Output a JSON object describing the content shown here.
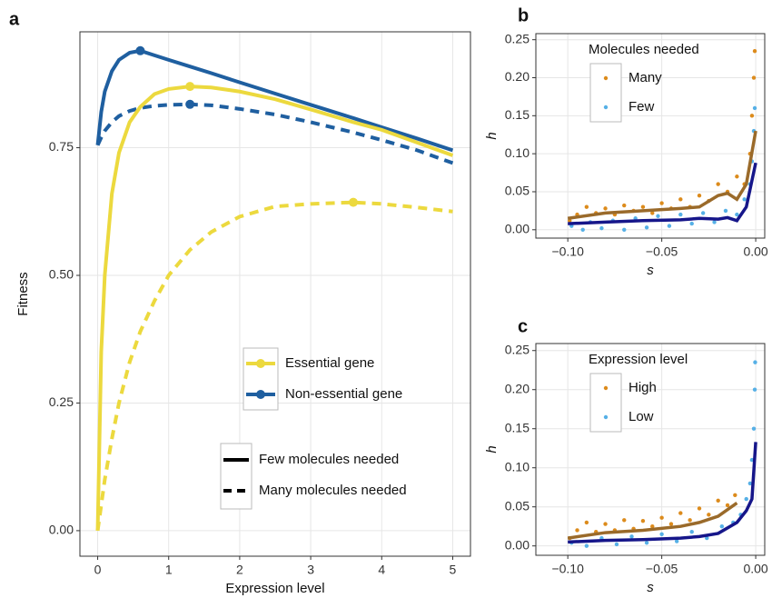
{
  "chart_data": [
    {
      "type": "line",
      "panel_label": "a",
      "x_label": "Expression level",
      "y_label": "Fitness",
      "x": [
        0,
        0.05,
        0.1,
        0.2,
        0.3,
        0.45,
        0.6,
        0.8,
        1,
        1.3,
        1.6,
        2,
        2.5,
        3,
        3.6,
        4,
        4.5,
        5
      ],
      "xlim": [
        -0.25,
        5.25
      ],
      "ylim": [
        -0.05,
        0.977
      ],
      "xticks": [
        0,
        1,
        2,
        3,
        4,
        5
      ],
      "yticks": [
        {
          "value": 0,
          "label": "0.00"
        },
        {
          "value": 0.25,
          "label": "0.25"
        },
        {
          "value": 0.5,
          "label": "0.50"
        },
        {
          "value": 0.75,
          "label": "0.75"
        }
      ],
      "grid": true,
      "series": [
        {
          "color": "#1f5fa0",
          "dashed": false,
          "peak_x": 0.6,
          "peak_y": 0.94,
          "values": [
            0.755,
            0.82,
            0.86,
            0.9,
            0.922,
            0.936,
            0.94,
            0.931,
            0.922,
            0.909,
            0.896,
            0.878,
            0.856,
            0.834,
            0.808,
            0.79,
            0.768,
            0.745
          ]
        },
        {
          "color": "#1f5fa0",
          "dashed": true,
          "peak_x": 1.3,
          "peak_y": 0.835,
          "values": [
            0.755,
            0.77,
            0.783,
            0.8,
            0.812,
            0.822,
            0.828,
            0.832,
            0.834,
            0.835,
            0.833,
            0.826,
            0.815,
            0.8,
            0.78,
            0.765,
            0.745,
            0.72
          ]
        },
        {
          "color": "#ecd93e",
          "dashed": false,
          "peak_x": 1.3,
          "peak_y": 0.87,
          "values": [
            0,
            0.35,
            0.5,
            0.66,
            0.74,
            0.8,
            0.83,
            0.855,
            0.865,
            0.87,
            0.868,
            0.86,
            0.845,
            0.825,
            0.8,
            0.785,
            0.76,
            0.735
          ]
        },
        {
          "color": "#ecd93e",
          "dashed": true,
          "peak_x": 3.6,
          "peak_y": 0.643,
          "values": [
            0,
            0.05,
            0.1,
            0.18,
            0.25,
            0.33,
            0.39,
            0.45,
            0.5,
            0.55,
            0.585,
            0.615,
            0.635,
            0.64,
            0.643,
            0.64,
            0.633,
            0.625
          ]
        }
      ],
      "color_legend": [
        {
          "label": "Essential gene",
          "color": "#ecd93e"
        },
        {
          "label": "Non-essential gene",
          "color": "#1f5fa0"
        }
      ],
      "linetype_legend": [
        {
          "label": "Few molecules needed",
          "dashed": false
        },
        {
          "label": "Many molecules needed",
          "dashed": true
        }
      ]
    },
    {
      "type": "scatter",
      "panel_label": "b",
      "x_label": "s",
      "y_label": "h",
      "legend_title": "Molecules needed",
      "xlim": [
        -0.117,
        0.0048
      ],
      "ylim": [
        -0.011,
        0.258
      ],
      "grid": true,
      "xticks": [
        {
          "value": -0.1,
          "label": "−0.10"
        },
        {
          "value": -0.05,
          "label": "−0.05"
        },
        {
          "value": 0,
          "label": "0.00"
        }
      ],
      "yticks": [
        {
          "value": 0,
          "label": "0.00"
        },
        {
          "value": 0.05,
          "label": "0.05"
        },
        {
          "value": 0.1,
          "label": "0.10"
        },
        {
          "value": 0.15,
          "label": "0.15"
        },
        {
          "value": 0.2,
          "label": "0.20"
        },
        {
          "value": 0.25,
          "label": "0.25"
        }
      ],
      "series": [
        {
          "name": "Many",
          "color": "#dc8b1c",
          "x": [
            -0.099,
            -0.095,
            -0.09,
            -0.085,
            -0.08,
            -0.075,
            -0.07,
            -0.065,
            -0.06,
            -0.055,
            -0.05,
            -0.045,
            -0.04,
            -0.035,
            -0.03,
            -0.025,
            -0.02,
            -0.015,
            -0.01,
            -0.006,
            -0.003,
            -0.002,
            -0.001,
            -0.0005
          ],
          "values": [
            0.012,
            0.02,
            0.03,
            0.022,
            0.028,
            0.02,
            0.032,
            0.025,
            0.03,
            0.022,
            0.035,
            0.028,
            0.04,
            0.03,
            0.045,
            0.038,
            0.06,
            0.05,
            0.07,
            0.06,
            0.1,
            0.15,
            0.2,
            0.235
          ]
        },
        {
          "name": "Few",
          "color": "#56b0e6",
          "x": [
            -0.098,
            -0.092,
            -0.088,
            -0.082,
            -0.076,
            -0.07,
            -0.064,
            -0.058,
            -0.052,
            -0.046,
            -0.04,
            -0.034,
            -0.028,
            -0.022,
            -0.016,
            -0.01,
            -0.006,
            -0.003,
            -0.002,
            -0.001,
            -0.0005
          ],
          "values": [
            0.005,
            0,
            0.01,
            0.002,
            0.012,
            0,
            0.015,
            0.003,
            0.018,
            0.005,
            0.02,
            0.008,
            0.022,
            0.01,
            0.025,
            0.02,
            0.04,
            0.06,
            0.09,
            0.13,
            0.16
          ]
        }
      ],
      "smooth": [
        {
          "color": "#9a6a2a",
          "x": [
            -0.1,
            -0.08,
            -0.06,
            -0.04,
            -0.03,
            -0.02,
            -0.015,
            -0.01,
            -0.005,
            0
          ],
          "values": [
            0.015,
            0.022,
            0.025,
            0.028,
            0.03,
            0.045,
            0.048,
            0.04,
            0.06,
            0.13
          ]
        },
        {
          "color": "#16168a",
          "x": [
            -0.1,
            -0.08,
            -0.06,
            -0.04,
            -0.03,
            -0.02,
            -0.015,
            -0.01,
            -0.005,
            0
          ],
          "values": [
            0.008,
            0.01,
            0.012,
            0.013,
            0.015,
            0.014,
            0.016,
            0.012,
            0.03,
            0.088
          ]
        }
      ]
    },
    {
      "type": "scatter",
      "panel_label": "c",
      "x_label": "s",
      "y_label": "h",
      "legend_title": "Expression level",
      "xlim": [
        -0.117,
        0.0048
      ],
      "ylim": [
        -0.012,
        0.259
      ],
      "grid": true,
      "xticks": [
        {
          "value": -0.1,
          "label": "−0.10"
        },
        {
          "value": -0.05,
          "label": "−0.05"
        },
        {
          "value": 0,
          "label": "0.00"
        }
      ],
      "yticks": [
        {
          "value": 0,
          "label": "0.00"
        },
        {
          "value": 0.05,
          "label": "0.05"
        },
        {
          "value": 0.1,
          "label": "0.10"
        },
        {
          "value": 0.15,
          "label": "0.15"
        },
        {
          "value": 0.2,
          "label": "0.20"
        },
        {
          "value": 0.25,
          "label": "0.25"
        }
      ],
      "series": [
        {
          "name": "High",
          "color": "#dc8b1c",
          "x": [
            -0.099,
            -0.095,
            -0.09,
            -0.085,
            -0.08,
            -0.075,
            -0.07,
            -0.065,
            -0.06,
            -0.055,
            -0.05,
            -0.045,
            -0.04,
            -0.035,
            -0.03,
            -0.025,
            -0.02,
            -0.015,
            -0.011
          ],
          "values": [
            0.01,
            0.02,
            0.03,
            0.018,
            0.028,
            0.02,
            0.033,
            0.022,
            0.032,
            0.025,
            0.036,
            0.028,
            0.042,
            0.033,
            0.048,
            0.04,
            0.058,
            0.052,
            0.065
          ]
        },
        {
          "name": "Low",
          "color": "#56b0e6",
          "x": [
            -0.098,
            -0.09,
            -0.082,
            -0.074,
            -0.066,
            -0.058,
            -0.05,
            -0.042,
            -0.034,
            -0.026,
            -0.018,
            -0.012,
            -0.008,
            -0.005,
            -0.003,
            -0.002,
            -0.001,
            -0.0005,
            -0.0003
          ],
          "values": [
            0.004,
            0.0,
            0.01,
            0.002,
            0.012,
            0.004,
            0.015,
            0.006,
            0.018,
            0.01,
            0.025,
            0.03,
            0.04,
            0.06,
            0.08,
            0.11,
            0.15,
            0.2,
            0.235
          ]
        }
      ],
      "smooth": [
        {
          "color": "#9a6a2a",
          "x": [
            -0.1,
            -0.08,
            -0.06,
            -0.04,
            -0.03,
            -0.02,
            -0.01
          ],
          "values": [
            0.01,
            0.017,
            0.02,
            0.025,
            0.03,
            0.038,
            0.055
          ]
        },
        {
          "color": "#16168a",
          "x": [
            -0.1,
            -0.08,
            -0.06,
            -0.04,
            -0.03,
            -0.02,
            -0.01,
            -0.005,
            -0.002,
            0
          ],
          "values": [
            0.005,
            0.007,
            0.008,
            0.01,
            0.012,
            0.016,
            0.03,
            0.045,
            0.06,
            0.133
          ]
        }
      ]
    }
  ]
}
